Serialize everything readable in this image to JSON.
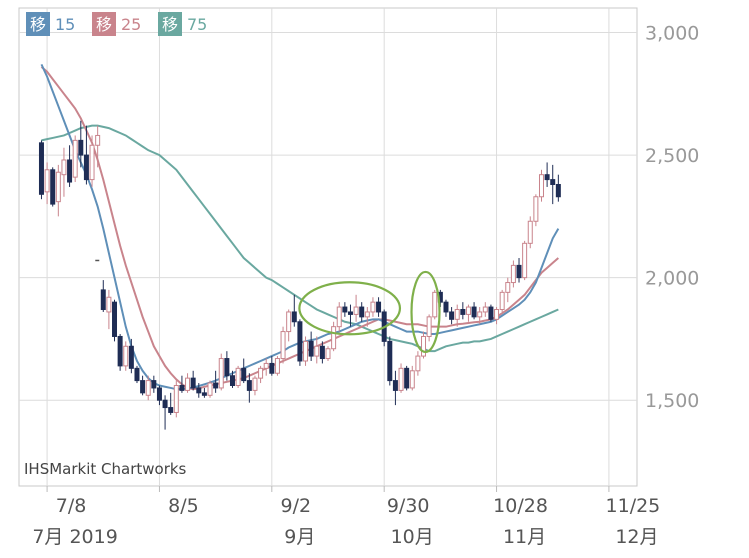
{
  "chart_data": {
    "type": "candlestick",
    "legend": [
      {
        "box": "移",
        "label": "15",
        "color": "#5f8fb8"
      },
      {
        "box": "移",
        "label": "25",
        "color": "#c9848c"
      },
      {
        "box": "移",
        "label": "75",
        "color": "#6aa8a0"
      }
    ],
    "watermark": "IHSMarkit Chartworks",
    "y_ticks": [
      "3,000",
      "2,500",
      "2,000",
      "1,500"
    ],
    "y_tick_values": [
      3000,
      2500,
      2000,
      1500
    ],
    "ylim": [
      1150,
      3100
    ],
    "x_ticks": [
      {
        "date": "7/8",
        "month": "7月 2019",
        "pos": 1
      },
      {
        "date": "8/5",
        "month": "",
        "pos": 21
      },
      {
        "date": "9/2",
        "month": "9月",
        "pos": 41
      },
      {
        "date": "9/30",
        "month": "10月",
        "pos": 61
      },
      {
        "date": "10/28",
        "month": "11月",
        "pos": 81
      },
      {
        "date": "11/25",
        "month": "12月",
        "pos": 101
      }
    ],
    "x_range": [
      -4,
      106
    ],
    "colors": {
      "up": "#c9848c",
      "down": "#1f2d55",
      "ma15": "#5f8fb8",
      "ma25": "#c9848c",
      "ma75": "#6aa8a0",
      "annotation": "#7fb04a",
      "grid": "#dcdcdc",
      "axis_text": "#999999"
    },
    "candles": [
      {
        "o": 2550,
        "h": 2560,
        "l": 2320,
        "c": 2340
      },
      {
        "o": 2350,
        "h": 2470,
        "l": 2300,
        "c": 2440
      },
      {
        "o": 2440,
        "h": 2450,
        "l": 2290,
        "c": 2300
      },
      {
        "o": 2310,
        "h": 2460,
        "l": 2250,
        "c": 2430
      },
      {
        "o": 2420,
        "h": 2530,
        "l": 2330,
        "c": 2480
      },
      {
        "o": 2480,
        "h": 2540,
        "l": 2370,
        "c": 2390
      },
      {
        "o": 2410,
        "h": 2580,
        "l": 2390,
        "c": 2560
      },
      {
        "o": 2560,
        "h": 2640,
        "l": 2450,
        "c": 2500
      },
      {
        "o": 2500,
        "h": 2620,
        "l": 2380,
        "c": 2400
      },
      {
        "o": 2400,
        "h": 2580,
        "l": 2370,
        "c": 2540
      },
      {
        "o": 2540,
        "h": 2620,
        "l": 2450,
        "c": 2580
      },
      {
        "o": 1950,
        "h": 1990,
        "l": 1860,
        "c": 1870
      },
      {
        "o": 1860,
        "h": 1950,
        "l": 1790,
        "c": 1920
      },
      {
        "o": 1900,
        "h": 1910,
        "l": 1740,
        "c": 1760
      },
      {
        "o": 1760,
        "h": 1770,
        "l": 1620,
        "c": 1640
      },
      {
        "o": 1640,
        "h": 1740,
        "l": 1620,
        "c": 1720
      },
      {
        "o": 1720,
        "h": 1750,
        "l": 1610,
        "c": 1630
      },
      {
        "o": 1630,
        "h": 1640,
        "l": 1570,
        "c": 1580
      },
      {
        "o": 1580,
        "h": 1600,
        "l": 1520,
        "c": 1530
      },
      {
        "o": 1520,
        "h": 1600,
        "l": 1500,
        "c": 1580
      },
      {
        "o": 1580,
        "h": 1600,
        "l": 1530,
        "c": 1550
      },
      {
        "o": 1550,
        "h": 1560,
        "l": 1480,
        "c": 1500
      },
      {
        "o": 1500,
        "h": 1520,
        "l": 1380,
        "c": 1470
      },
      {
        "o": 1470,
        "h": 1530,
        "l": 1440,
        "c": 1450
      },
      {
        "o": 1450,
        "h": 1580,
        "l": 1430,
        "c": 1560
      },
      {
        "o": 1560,
        "h": 1600,
        "l": 1530,
        "c": 1540
      },
      {
        "o": 1540,
        "h": 1610,
        "l": 1530,
        "c": 1590
      },
      {
        "o": 1590,
        "h": 1620,
        "l": 1540,
        "c": 1550
      },
      {
        "o": 1550,
        "h": 1570,
        "l": 1510,
        "c": 1530
      },
      {
        "o": 1530,
        "h": 1550,
        "l": 1510,
        "c": 1520
      },
      {
        "o": 1520,
        "h": 1580,
        "l": 1510,
        "c": 1570
      },
      {
        "o": 1570,
        "h": 1620,
        "l": 1530,
        "c": 1550
      },
      {
        "o": 1550,
        "h": 1690,
        "l": 1540,
        "c": 1670
      },
      {
        "o": 1670,
        "h": 1700,
        "l": 1580,
        "c": 1600
      },
      {
        "o": 1600,
        "h": 1620,
        "l": 1550,
        "c": 1560
      },
      {
        "o": 1560,
        "h": 1640,
        "l": 1550,
        "c": 1630
      },
      {
        "o": 1630,
        "h": 1670,
        "l": 1570,
        "c": 1580
      },
      {
        "o": 1580,
        "h": 1610,
        "l": 1490,
        "c": 1540
      },
      {
        "o": 1540,
        "h": 1600,
        "l": 1520,
        "c": 1590
      },
      {
        "o": 1590,
        "h": 1640,
        "l": 1570,
        "c": 1630
      },
      {
        "o": 1630,
        "h": 1670,
        "l": 1600,
        "c": 1650
      },
      {
        "o": 1650,
        "h": 1680,
        "l": 1600,
        "c": 1610
      },
      {
        "o": 1610,
        "h": 1680,
        "l": 1600,
        "c": 1670
      },
      {
        "o": 1670,
        "h": 1800,
        "l": 1650,
        "c": 1780
      },
      {
        "o": 1780,
        "h": 1870,
        "l": 1740,
        "c": 1860
      },
      {
        "o": 1860,
        "h": 1930,
        "l": 1800,
        "c": 1820
      },
      {
        "o": 1820,
        "h": 1830,
        "l": 1640,
        "c": 1660
      },
      {
        "o": 1660,
        "h": 1760,
        "l": 1640,
        "c": 1740
      },
      {
        "o": 1740,
        "h": 1780,
        "l": 1660,
        "c": 1680
      },
      {
        "o": 1680,
        "h": 1760,
        "l": 1650,
        "c": 1720
      },
      {
        "o": 1720,
        "h": 1740,
        "l": 1650,
        "c": 1670
      },
      {
        "o": 1670,
        "h": 1720,
        "l": 1660,
        "c": 1710
      },
      {
        "o": 1710,
        "h": 1820,
        "l": 1700,
        "c": 1800
      },
      {
        "o": 1800,
        "h": 1900,
        "l": 1780,
        "c": 1880
      },
      {
        "o": 1880,
        "h": 1900,
        "l": 1840,
        "c": 1860
      },
      {
        "o": 1860,
        "h": 1890,
        "l": 1800,
        "c": 1850
      },
      {
        "o": 1850,
        "h": 1930,
        "l": 1820,
        "c": 1880
      },
      {
        "o": 1880,
        "h": 1900,
        "l": 1820,
        "c": 1840
      },
      {
        "o": 1840,
        "h": 1880,
        "l": 1800,
        "c": 1860
      },
      {
        "o": 1860,
        "h": 1920,
        "l": 1840,
        "c": 1900
      },
      {
        "o": 1900,
        "h": 1920,
        "l": 1840,
        "c": 1860
      },
      {
        "o": 1860,
        "h": 1870,
        "l": 1720,
        "c": 1740
      },
      {
        "o": 1740,
        "h": 1760,
        "l": 1560,
        "c": 1580
      },
      {
        "o": 1580,
        "h": 1620,
        "l": 1480,
        "c": 1540
      },
      {
        "o": 1540,
        "h": 1650,
        "l": 1530,
        "c": 1630
      },
      {
        "o": 1630,
        "h": 1640,
        "l": 1540,
        "c": 1550
      },
      {
        "o": 1550,
        "h": 1640,
        "l": 1540,
        "c": 1620
      },
      {
        "o": 1620,
        "h": 1700,
        "l": 1600,
        "c": 1680
      },
      {
        "o": 1680,
        "h": 1780,
        "l": 1670,
        "c": 1760
      },
      {
        "o": 1760,
        "h": 1850,
        "l": 1740,
        "c": 1840
      },
      {
        "o": 1840,
        "h": 1950,
        "l": 1830,
        "c": 1940
      },
      {
        "o": 1940,
        "h": 1950,
        "l": 1880,
        "c": 1900
      },
      {
        "o": 1900,
        "h": 1910,
        "l": 1840,
        "c": 1860
      },
      {
        "o": 1860,
        "h": 1880,
        "l": 1810,
        "c": 1830
      },
      {
        "o": 1830,
        "h": 1890,
        "l": 1800,
        "c": 1870
      },
      {
        "o": 1870,
        "h": 1900,
        "l": 1830,
        "c": 1850
      },
      {
        "o": 1850,
        "h": 1890,
        "l": 1820,
        "c": 1880
      },
      {
        "o": 1880,
        "h": 1900,
        "l": 1830,
        "c": 1840
      },
      {
        "o": 1840,
        "h": 1880,
        "l": 1810,
        "c": 1860
      },
      {
        "o": 1860,
        "h": 1900,
        "l": 1840,
        "c": 1880
      },
      {
        "o": 1880,
        "h": 1890,
        "l": 1820,
        "c": 1830
      },
      {
        "o": 1830,
        "h": 1880,
        "l": 1810,
        "c": 1870
      },
      {
        "o": 1870,
        "h": 1950,
        "l": 1860,
        "c": 1940
      },
      {
        "o": 1940,
        "h": 2000,
        "l": 1900,
        "c": 1980
      },
      {
        "o": 1980,
        "h": 2070,
        "l": 1960,
        "c": 2050
      },
      {
        "o": 2050,
        "h": 2080,
        "l": 1980,
        "c": 2000
      },
      {
        "o": 2000,
        "h": 2150,
        "l": 1990,
        "c": 2140
      },
      {
        "o": 2140,
        "h": 2250,
        "l": 2120,
        "c": 2230
      },
      {
        "o": 2230,
        "h": 2340,
        "l": 2210,
        "c": 2330
      },
      {
        "o": 2330,
        "h": 2440,
        "l": 2310,
        "c": 2420
      },
      {
        "o": 2420,
        "h": 2470,
        "l": 2370,
        "c": 2400
      },
      {
        "o": 2400,
        "h": 2460,
        "l": 2300,
        "c": 2380
      },
      {
        "o": 2380,
        "h": 2420,
        "l": 2310,
        "c": 2330
      }
    ],
    "ma15": [
      2870,
      2820,
      2760,
      2700,
      2640,
      2580,
      2520,
      2470,
      2420,
      2360,
      2290,
      2200,
      2100,
      2000,
      1900,
      1800,
      1720,
      1660,
      1620,
      1590,
      1570,
      1560,
      1555,
      1550,
      1545,
      1545,
      1548,
      1552,
      1558,
      1565,
      1572,
      1580,
      1590,
      1600,
      1610,
      1620,
      1630,
      1640,
      1650,
      1660,
      1670,
      1680,
      1690,
      1700,
      1715,
      1725,
      1735,
      1740,
      1745,
      1750,
      1760,
      1770,
      1775,
      1780,
      1790,
      1800,
      1810,
      1820,
      1825,
      1830,
      1830,
      1820,
      1810,
      1800,
      1790,
      1780,
      1780,
      1780,
      1775,
      1770,
      1770,
      1775,
      1780,
      1785,
      1790,
      1795,
      1800,
      1805,
      1810,
      1815,
      1820,
      1830,
      1845,
      1860,
      1875,
      1890,
      1910,
      1940,
      1980,
      2040,
      2100,
      2160,
      2200
    ],
    "ma25": [
      2860,
      2840,
      2810,
      2780,
      2750,
      2720,
      2690,
      2650,
      2600,
      2550,
      2480,
      2400,
      2310,
      2220,
      2130,
      2050,
      1980,
      1910,
      1840,
      1780,
      1720,
      1680,
      1640,
      1610,
      1585,
      1565,
      1550,
      1545,
      1548,
      1555,
      1560,
      1565,
      1570,
      1575,
      1580,
      1585,
      1590,
      1600,
      1610,
      1620,
      1630,
      1640,
      1650,
      1660,
      1670,
      1680,
      1690,
      1700,
      1710,
      1720,
      1730,
      1740,
      1750,
      1760,
      1770,
      1780,
      1790,
      1800,
      1810,
      1820,
      1830,
      1830,
      1825,
      1820,
      1815,
      1810,
      1810,
      1810,
      1805,
      1800,
      1800,
      1800,
      1800,
      1805,
      1810,
      1812,
      1815,
      1818,
      1820,
      1825,
      1830,
      1840,
      1855,
      1870,
      1890,
      1910,
      1930,
      1960,
      1990,
      2020,
      2040,
      2060,
      2080
    ],
    "ma75": [
      2560,
      2565,
      2570,
      2575,
      2580,
      2590,
      2600,
      2610,
      2615,
      2620,
      2620,
      2615,
      2610,
      2600,
      2590,
      2580,
      2565,
      2550,
      2535,
      2520,
      2510,
      2500,
      2480,
      2460,
      2440,
      2410,
      2380,
      2350,
      2320,
      2290,
      2260,
      2230,
      2200,
      2170,
      2140,
      2110,
      2080,
      2060,
      2040,
      2020,
      2000,
      1990,
      1975,
      1960,
      1945,
      1930,
      1915,
      1900,
      1885,
      1870,
      1860,
      1850,
      1840,
      1830,
      1820,
      1815,
      1810,
      1800,
      1790,
      1780,
      1770,
      1760,
      1750,
      1745,
      1740,
      1735,
      1730,
      1720,
      1710,
      1700,
      1700,
      1710,
      1720,
      1725,
      1730,
      1735,
      1735,
      1740,
      1740,
      1745,
      1750,
      1760,
      1770,
      1780,
      1790,
      1800,
      1810,
      1820,
      1830,
      1840,
      1850,
      1860,
      1870
    ]
  }
}
